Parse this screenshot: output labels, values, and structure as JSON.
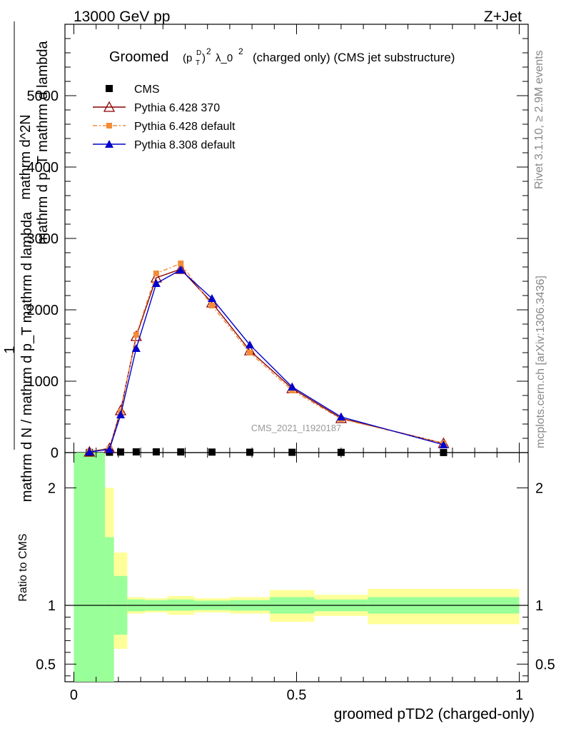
{
  "header": {
    "left": "13000 GeV pp",
    "right": "Z+Jet"
  },
  "side_text": {
    "rivet": "Rivet 3.1.10, ≥ 2.9M events",
    "site": "mcplots.cern.ch [arXiv:1306.3436]"
  },
  "title": {
    "prefix": "Groomed",
    "p": "(p",
    "sup_d": "D",
    "sub_t": "T",
    "close": ")",
    "sup_2": "2",
    "lambda": "λ_0",
    "sup_2b": "2",
    "suffix": "(charged only) (CMS jet substructure)"
  },
  "ylabel": {
    "numerator": "1",
    "denominator": "mathrm d N / mathrm d p_T mathrm d lambda",
    "right_num": "mathrm d^2N",
    "right_den": "mathrm d p_T mathrm d lambda"
  },
  "watermark": "CMS_2021_I1920187",
  "xlabel": "groomed pTD2 (charged-only)",
  "ratio_ylabel": "Ratio to CMS",
  "chart_data": [
    {
      "type": "line",
      "panel": "main",
      "xlim": [
        -0.02,
        1.02
      ],
      "ylim": [
        0,
        6000
      ],
      "yticks": [
        0,
        1000,
        2000,
        3000,
        4000,
        5000
      ],
      "ytick_labels": [
        "0",
        "1000",
        "2000",
        "3000",
        "4000",
        "5000"
      ],
      "xticks": [
        0,
        0.5,
        1
      ],
      "xtick_labels": [
        "0",
        "0.5",
        "1"
      ],
      "legend_position": "top-left",
      "series": [
        {
          "name": "CMS",
          "marker": "square",
          "color": "#000000",
          "x": [
            0.035,
            0.08,
            0.105,
            0.14,
            0.185,
            0.24,
            0.31,
            0.395,
            0.49,
            0.6,
            0.83
          ],
          "y": [
            2,
            5,
            8,
            10,
            10,
            9,
            7,
            5,
            4,
            3,
            1
          ]
        },
        {
          "name": "Pythia 6.428 370",
          "marker": "triangle-open",
          "color": "#8b0000",
          "line": "solid",
          "x": [
            0.035,
            0.08,
            0.105,
            0.14,
            0.185,
            0.24,
            0.31,
            0.395,
            0.49,
            0.6,
            0.83
          ],
          "y": [
            10,
            60,
            590,
            1630,
            2450,
            2570,
            2100,
            1430,
            900,
            480,
            130
          ]
        },
        {
          "name": "Pythia 6.428 default",
          "marker": "square-small",
          "color": "#f28c38",
          "line": "dashdot",
          "x": [
            0.035,
            0.08,
            0.105,
            0.14,
            0.185,
            0.24,
            0.31,
            0.395,
            0.49,
            0.6,
            0.83
          ],
          "y": [
            10,
            55,
            570,
            1650,
            2510,
            2650,
            2060,
            1400,
            870,
            470,
            130
          ]
        },
        {
          "name": "Pythia 8.308 default",
          "marker": "triangle",
          "color": "#0000cc",
          "line": "solid",
          "x": [
            0.035,
            0.08,
            0.105,
            0.14,
            0.185,
            0.24,
            0.31,
            0.395,
            0.49,
            0.6,
            0.83
          ],
          "y": [
            10,
            45,
            530,
            1460,
            2370,
            2560,
            2160,
            1510,
            920,
            500,
            110
          ]
        }
      ]
    },
    {
      "type": "area",
      "panel": "ratio",
      "ylabel": "Ratio to CMS",
      "ylim": [
        0.35,
        2.3
      ],
      "yticks": [
        0.5,
        1,
        2
      ],
      "ytick_labels": [
        "0.5",
        "1",
        "2"
      ],
      "bands": [
        {
          "xlo": 0.0,
          "xhi": 0.07,
          "inner": [
            0.35,
            2.3
          ],
          "outer": [
            0.35,
            2.3
          ]
        },
        {
          "xlo": 0.07,
          "xhi": 0.09,
          "inner": [
            0.35,
            1.58
          ],
          "outer": [
            0.35,
            2.0
          ]
        },
        {
          "xlo": 0.09,
          "xhi": 0.12,
          "inner": [
            0.75,
            1.25
          ],
          "outer": [
            0.63,
            1.45
          ]
        },
        {
          "xlo": 0.12,
          "xhi": 0.16,
          "inner": [
            0.95,
            1.05
          ],
          "outer": [
            0.93,
            1.07
          ]
        },
        {
          "xlo": 0.16,
          "xhi": 0.21,
          "inner": [
            0.955,
            1.045
          ],
          "outer": [
            0.94,
            1.06
          ]
        },
        {
          "xlo": 0.21,
          "xhi": 0.27,
          "inner": [
            0.955,
            1.05
          ],
          "outer": [
            0.92,
            1.08
          ]
        },
        {
          "xlo": 0.27,
          "xhi": 0.35,
          "inner": [
            0.96,
            1.04
          ],
          "outer": [
            0.94,
            1.06
          ]
        },
        {
          "xlo": 0.35,
          "xhi": 0.44,
          "inner": [
            0.955,
            1.045
          ],
          "outer": [
            0.93,
            1.07
          ]
        },
        {
          "xlo": 0.44,
          "xhi": 0.54,
          "inner": [
            0.93,
            1.07
          ],
          "outer": [
            0.86,
            1.13
          ]
        },
        {
          "xlo": 0.54,
          "xhi": 0.66,
          "inner": [
            0.95,
            1.05
          ],
          "outer": [
            0.91,
            1.09
          ]
        },
        {
          "xlo": 0.66,
          "xhi": 1.0,
          "inner": [
            0.93,
            1.07
          ],
          "outer": [
            0.84,
            1.14
          ]
        }
      ],
      "reference": 1
    }
  ],
  "colors": {
    "band_inner": "#99ff99",
    "band_outer": "#ffff99"
  }
}
